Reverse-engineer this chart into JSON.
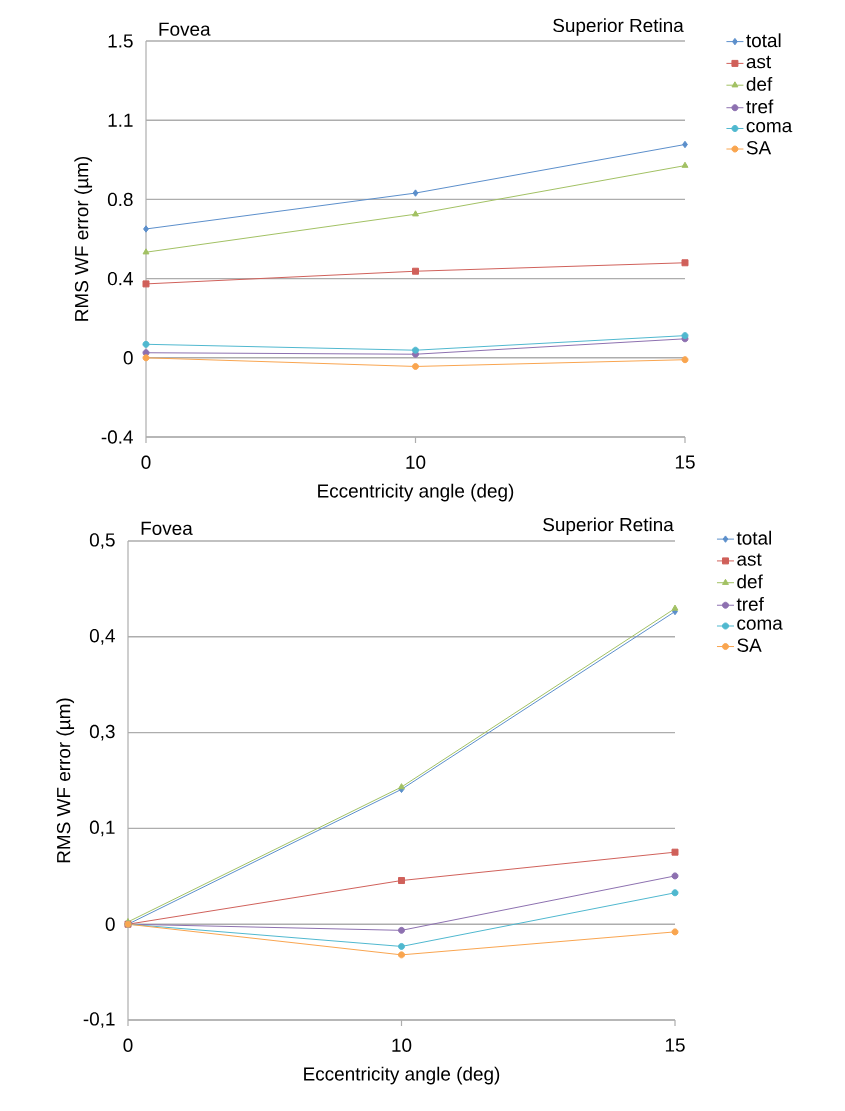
{
  "chart_data": [
    {
      "type": "line",
      "xlabel": "Eccentricity angle (deg)",
      "ylabel": "RMS WF error (µm)",
      "categories": [
        "0",
        "10",
        "15"
      ],
      "annotations": [
        "Fovea",
        "Superior Retina"
      ],
      "ylim": [
        -0.375,
        1.5
      ],
      "yticks": [
        {
          "value": -0.375,
          "label": "-0.4"
        },
        0,
        {
          "value": 0.375,
          "label": "0.4"
        },
        {
          "value": 0.75,
          "label": "0.8"
        },
        {
          "value": 1.125,
          "label": "1.1"
        },
        1.5
      ],
      "grid": "y",
      "legend": "right",
      "series": [
        {
          "name": "total",
          "color": "#5b8fcb",
          "marker": "diamond",
          "values": [
            0.61,
            0.78,
            1.01
          ]
        },
        {
          "name": "ast",
          "color": "#d0605a",
          "marker": "square",
          "values": [
            0.35,
            0.41,
            0.45
          ]
        },
        {
          "name": "def",
          "color": "#a2c163",
          "marker": "triangle",
          "values": [
            0.5,
            0.68,
            0.91
          ]
        },
        {
          "name": "tref",
          "color": "#8d70b0",
          "marker": "circle",
          "values": [
            0.024,
            0.017,
            0.09
          ]
        },
        {
          "name": "coma",
          "color": "#4fb8cf",
          "marker": "circle",
          "values": [
            0.064,
            0.036,
            0.105
          ]
        },
        {
          "name": "SA",
          "color": "#f9a54f",
          "marker": "circle",
          "values": [
            0,
            -0.041,
            -0.009
          ]
        }
      ]
    },
    {
      "type": "line",
      "xlabel": "Eccentricity angle (deg)",
      "ylabel": "RMS WF error (µm)",
      "categories": [
        "0",
        "10",
        "15"
      ],
      "annotations": [
        "Fovea",
        "Superior Retina"
      ],
      "ylim": [
        -0.125,
        0.5
      ],
      "yticks": [
        {
          "value": -0.125,
          "label": "-0,1"
        },
        0,
        {
          "value": 0.125,
          "label": "0,1"
        },
        {
          "value": 0.25,
          "label": "0,3"
        },
        {
          "value": 0.375,
          "label": "0,4"
        },
        {
          "value": 0.5,
          "label": "0,5"
        }
      ],
      "grid": "y",
      "legend": "right",
      "series": [
        {
          "name": "total",
          "color": "#5b8fcb",
          "marker": "diamond",
          "values": [
            0,
            0.176,
            0.408
          ]
        },
        {
          "name": "ast",
          "color": "#d0605a",
          "marker": "square",
          "values": [
            0,
            0.057,
            0.094
          ]
        },
        {
          "name": "def",
          "color": "#a2c163",
          "marker": "triangle",
          "values": [
            0.003,
            0.179,
            0.412
          ]
        },
        {
          "name": "tref",
          "color": "#8d70b0",
          "marker": "circle",
          "values": [
            0,
            -0.008,
            0.063
          ]
        },
        {
          "name": "coma",
          "color": "#4fb8cf",
          "marker": "circle",
          "values": [
            0,
            -0.029,
            0.041
          ]
        },
        {
          "name": "SA",
          "color": "#f9a54f",
          "marker": "circle",
          "values": [
            0,
            -0.04,
            -0.01
          ]
        }
      ]
    }
  ]
}
